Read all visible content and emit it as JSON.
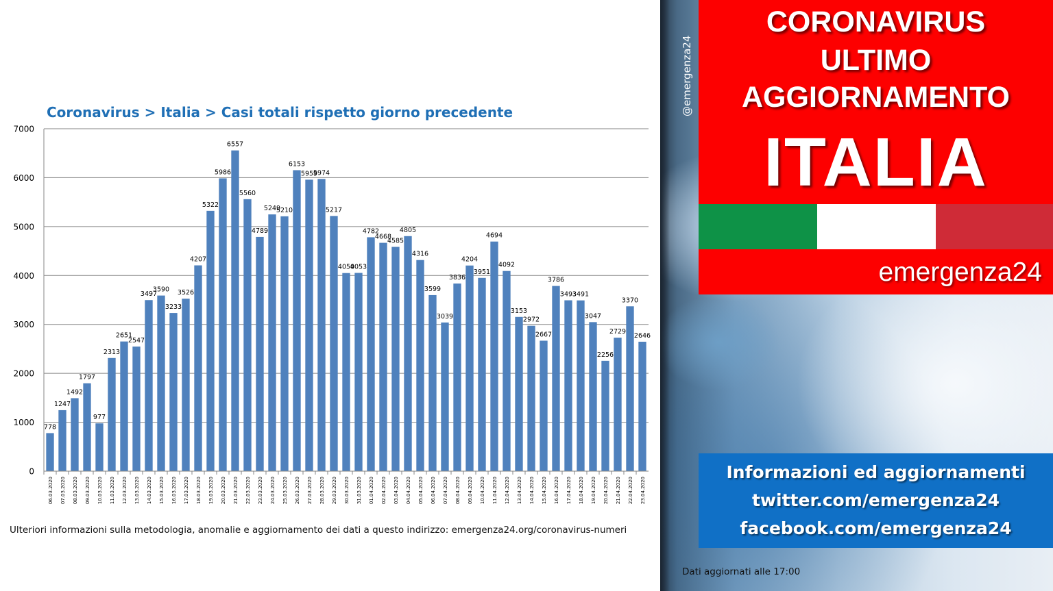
{
  "chart_data": {
    "type": "bar",
    "title": "Coronavirus > Italia > Casi totali rispetto giorno precedente",
    "xlabel": "",
    "ylabel": "",
    "ylim": [
      0,
      7000
    ],
    "yticks": [
      0,
      1000,
      2000,
      3000,
      4000,
      5000,
      6000,
      7000
    ],
    "grid": true,
    "legend": "none",
    "bar_color": "#4f81bd",
    "categories": [
      "06.03.2020",
      "07.03.2020",
      "08.03.2020",
      "09.03.2020",
      "10.03.2020",
      "11.03.2020",
      "12.03.2020",
      "13.03.2020",
      "14.03.2020",
      "15.03.2020",
      "16.03.2020",
      "17.03.2020",
      "18.03.2020",
      "19.03.2020",
      "20.03.2020",
      "21.03.2020",
      "22.03.2020",
      "23.03.2020",
      "24.03.2020",
      "25.03.2020",
      "26.03.2020",
      "27.03.2020",
      "28.03.2020",
      "29.03.2020",
      "30.03.2020",
      "31.03.2020",
      "01.04.2020",
      "02.04.2020",
      "03.04.2020",
      "04.04.2020",
      "05.04.2020",
      "06.04.2020",
      "07.04.2020",
      "08.04.2020",
      "09.04.2020",
      "10.04.2020",
      "11.04.2020",
      "12.04.2020",
      "13.04.2020",
      "14.04.2020",
      "15.04.2020",
      "16.04.2020",
      "17.04.2020",
      "18.04.2020",
      "19.04.2020",
      "20.04.2020",
      "21.04.2020",
      "22.04.2020",
      "23.04.2020"
    ],
    "values": [
      778,
      1247,
      1492,
      1797,
      977,
      2313,
      2651,
      2547,
      3497,
      3590,
      3233,
      3526,
      4207,
      5322,
      5986,
      6557,
      5560,
      4789,
      5249,
      5210,
      6153,
      5959,
      5974,
      5217,
      4050,
      4053,
      4782,
      4668,
      4585,
      4805,
      4316,
      3599,
      3039,
      3836,
      4204,
      3951,
      4694,
      4092,
      3153,
      2972,
      2667,
      3786,
      3493,
      3491,
      3047,
      2256,
      2729,
      3370,
      2646
    ]
  },
  "footnote": "Ulteriori informazioni sulla metodologia, anomalie e aggiornamento dei dati a questo indirizzo: emergenza24.org/coronavirus-numeri",
  "banner": {
    "line1": "CORONAVIRUS",
    "line2": "ULTIMO",
    "line3": "AGGIORNAMENTO",
    "country": "ITALIA",
    "brand": "emergenza24"
  },
  "watermark": "@emergenza24",
  "info": {
    "line1": "Informazioni ed aggiornamenti",
    "line2": "twitter.com/emergenza24",
    "line3": "facebook.com/emergenza24"
  },
  "update_note": "Dati aggiornati alle 17:00",
  "colors": {
    "banner_red": "#fd0000",
    "flag_green": "#0e9247",
    "flag_white": "#ffffff",
    "flag_red": "#cf2b37",
    "info_blue": "#1070c6",
    "title_blue": "#1f6fb5"
  }
}
